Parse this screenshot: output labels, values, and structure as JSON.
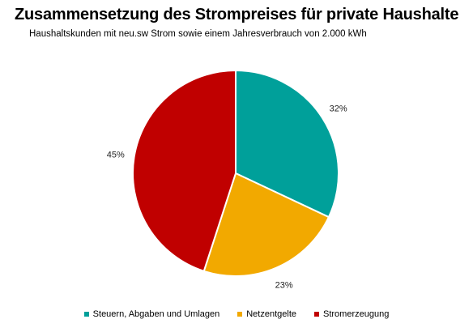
{
  "chart_data": {
    "type": "pie",
    "title": "Zusammensetzung des Strompreises für private Haushalte",
    "subtitle": "Haushaltskunden mit neu.sw Strom sowie einem Jahresverbrauch von 2.000 kWh",
    "slices": [
      {
        "label": "Steuern, Abgaben und Umlagen",
        "value": 32,
        "display": "32%",
        "color": "#00A09A"
      },
      {
        "label": "Netzentgelte",
        "value": 23,
        "display": "23%",
        "color": "#F2A900"
      },
      {
        "label": "Stromerzeugung",
        "value": 45,
        "display": "45%",
        "color": "#C00000"
      }
    ],
    "legend_position": "bottom",
    "start": "top, clockwise"
  }
}
